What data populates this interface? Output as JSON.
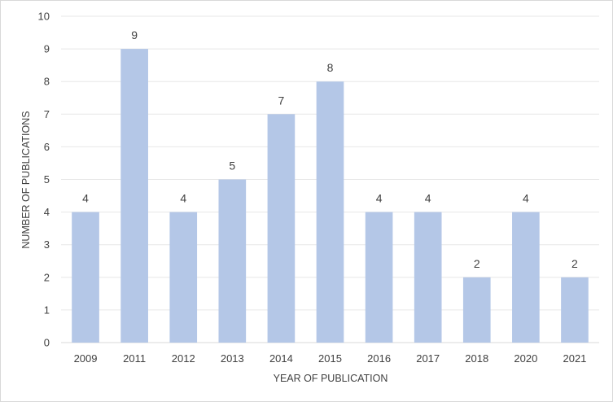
{
  "chart_data": {
    "type": "bar",
    "title": "",
    "xlabel": "YEAR OF PUBLICATION",
    "ylabel": "NUMBER OF PUBLICATIONS",
    "categories": [
      "2009",
      "2011",
      "2012",
      "2013",
      "2014",
      "2015",
      "2016",
      "2017",
      "2018",
      "2020",
      "2021"
    ],
    "values": [
      4,
      9,
      4,
      5,
      7,
      8,
      4,
      4,
      2,
      4,
      2
    ],
    "data_labels": [
      "4",
      "9",
      "4",
      "5",
      "7",
      "8",
      "4",
      "4",
      "2",
      "4",
      "2"
    ],
    "y_ticks": [
      "0",
      "1",
      "2",
      "3",
      "4",
      "5",
      "6",
      "7",
      "8",
      "9",
      "10"
    ],
    "ylim": [
      0,
      10
    ],
    "grid": true,
    "legend": "none",
    "colors": {
      "bar": "#b4c7e7",
      "grid": "#e7e7e7",
      "axis": "#d9d9d9",
      "text": "#404040"
    }
  }
}
